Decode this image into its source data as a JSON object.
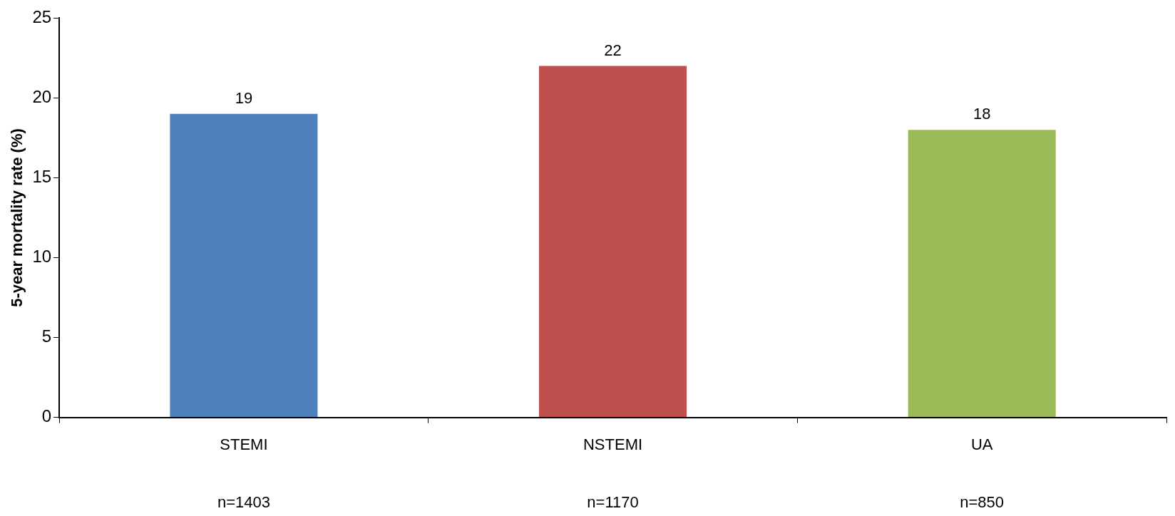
{
  "chart_data": {
    "type": "bar",
    "ylabel": "5-year mortality rate (%)",
    "categories": [
      "STEMI",
      "NSTEMI",
      "UA"
    ],
    "values": [
      19,
      22,
      18
    ],
    "colors": [
      "#4f81bd",
      "#c0504d",
      "#9bbb59"
    ],
    "ylim": [
      0,
      25
    ],
    "yticks": [
      0,
      5,
      10,
      15,
      20,
      25
    ],
    "data_labels": true,
    "grid": false,
    "legend": false,
    "annotations": [
      "n=1403",
      "n=1170",
      "n=850"
    ]
  }
}
